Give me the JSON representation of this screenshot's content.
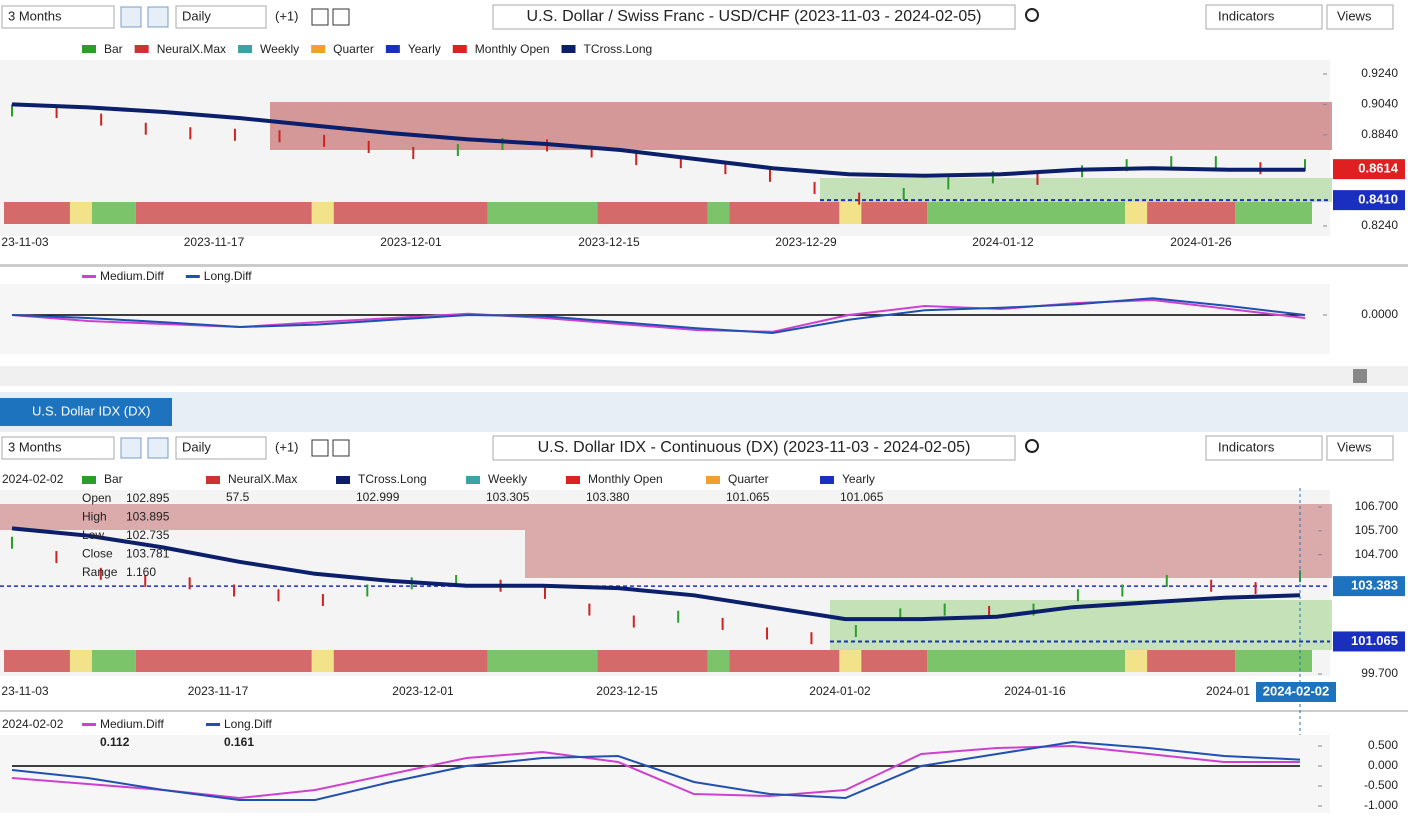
{
  "toolbar1": {
    "range": "3 Months",
    "interval": "Daily",
    "offset": "(+1)",
    "title": "U.S. Dollar / Swiss Franc - USD/CHF (2023-11-03 - 2024-02-05)",
    "indicators": "Indicators",
    "views": "Views"
  },
  "chart1": {
    "legend": [
      "Bar",
      "NeuralX.Max",
      "Weekly",
      "Quarter",
      "Yearly",
      "Monthly Open",
      "TCross.Long"
    ],
    "ylim": [
      0.8174,
      0.9319
    ],
    "yticks": [
      {
        "value": 0.924,
        "label": "0.9240"
      },
      {
        "value": 0.904,
        "label": "0.9040"
      },
      {
        "value": 0.884,
        "label": "0.8840"
      },
      {
        "value": 0.824,
        "label": "0.8240"
      }
    ],
    "price": 0.8614,
    "support": {
      "value": 0.841,
      "label": "0.8410"
    },
    "xticks": [
      "23-11-03",
      "2023-11-17",
      "2023-12-01",
      "2023-12-15",
      "2023-12-29",
      "2024-01-12",
      "2024-01-26"
    ],
    "tcross": [
      0.904,
      0.902,
      0.899,
      0.895,
      0.89,
      0.885,
      0.881,
      0.878,
      0.874,
      0.868,
      0.862,
      0.858,
      0.857,
      0.858,
      0.861,
      0.862,
      0.861,
      0.861
    ],
    "closes": [
      0.9,
      0.899,
      0.894,
      0.888,
      0.885,
      0.884,
      0.883,
      0.88,
      0.876,
      0.872,
      0.874,
      0.878,
      0.877,
      0.873,
      0.868,
      0.866,
      0.862,
      0.857,
      0.849,
      0.842,
      0.845,
      0.852,
      0.856,
      0.855,
      0.86,
      0.864,
      0.866,
      0.866,
      0.862,
      0.864
    ]
  },
  "diff1": {
    "legend": [
      "Medium.Diff",
      "Long.Diff"
    ],
    "ylim": [
      -0.45,
      0.45
    ],
    "yticks": [
      {
        "value": 0,
        "label": "0.0000"
      }
    ],
    "medium": [
      0.0,
      -0.1,
      -0.15,
      -0.2,
      -0.12,
      -0.05,
      0.02,
      -0.05,
      -0.15,
      -0.25,
      -0.28,
      0.0,
      0.15,
      0.1,
      0.2,
      0.25,
      0.1,
      -0.05
    ],
    "long": [
      0.0,
      -0.05,
      -0.12,
      -0.2,
      -0.16,
      -0.08,
      0.0,
      -0.02,
      -0.12,
      -0.22,
      -0.3,
      -0.08,
      0.08,
      0.12,
      0.18,
      0.28,
      0.15,
      0.0
    ]
  },
  "tab": "U.S. Dollar IDX (DX)",
  "toolbar2": {
    "range": "3 Months",
    "interval": "Daily",
    "offset": "(+1)",
    "title": "U.S. Dollar IDX - Continuous (DX) (2023-11-03 - 2024-02-05)",
    "indicators": "Indicators",
    "views": "Views"
  },
  "chart2": {
    "date": "2024-02-02",
    "legend": [
      {
        "name": "Bar"
      },
      {
        "name": "NeuralX.Max",
        "value": "57.5"
      },
      {
        "name": "TCross.Long",
        "value": "102.999"
      },
      {
        "name": "Weekly",
        "value": "103.305"
      },
      {
        "name": "Monthly Open",
        "value": "103.380"
      },
      {
        "name": "Quarter",
        "value": "101.065"
      },
      {
        "name": "Yearly",
        "value": "101.065"
      }
    ],
    "ohlc": [
      {
        "name": "Open",
        "value": "102.895"
      },
      {
        "name": "High",
        "value": "103.895"
      },
      {
        "name": "Low",
        "value": "102.735"
      },
      {
        "name": "Close",
        "value": "103.781"
      },
      {
        "name": "Range",
        "value": "1.160"
      }
    ],
    "ylim": [
      99.45,
      107.41
    ],
    "yticks": [
      {
        "value": 106.7,
        "label": "106.700"
      },
      {
        "value": 105.7,
        "label": "105.700"
      },
      {
        "value": 104.7,
        "label": "104.700"
      },
      {
        "value": 99.7,
        "label": "99.700"
      }
    ],
    "price": 103.383,
    "support": 101.065,
    "xticks": [
      "23-11-03",
      "2023-11-17",
      "2023-12-01",
      "2023-12-15",
      "2024-01-02",
      "2024-01-16",
      "2024-01"
    ],
    "cursor_date": "2024-02-02",
    "tcross": [
      105.8,
      105.5,
      105.0,
      104.4,
      103.9,
      103.6,
      103.4,
      103.4,
      103.3,
      103.0,
      102.5,
      102.0,
      102.0,
      102.1,
      102.5,
      102.7,
      102.9,
      103.0
    ],
    "closes": [
      105.2,
      104.6,
      103.9,
      103.6,
      103.5,
      103.2,
      103.0,
      102.8,
      103.2,
      103.5,
      103.6,
      103.4,
      103.1,
      102.4,
      101.9,
      102.1,
      101.8,
      101.4,
      101.2,
      101.5,
      102.2,
      102.4,
      102.3,
      102.4,
      103.0,
      103.2,
      103.6,
      103.4,
      103.3,
      103.8
    ]
  },
  "diff2": {
    "date": "2024-02-02",
    "legend": [
      {
        "name": "Medium.Diff",
        "value": "0.112"
      },
      {
        "name": "Long.Diff",
        "value": "0.161"
      }
    ],
    "ylim": [
      -1.1,
      0.775
    ],
    "yticks": [
      {
        "value": 0.5,
        "label": "0.500"
      },
      {
        "value": 0,
        "label": "0.000"
      },
      {
        "value": -0.5,
        "label": "-0.500"
      },
      {
        "value": -1,
        "label": "-1.000"
      }
    ],
    "medium": [
      -0.3,
      -0.45,
      -0.6,
      -0.8,
      -0.6,
      -0.2,
      0.2,
      0.35,
      0.1,
      -0.7,
      -0.75,
      -0.6,
      0.3,
      0.45,
      0.5,
      0.3,
      0.1,
      0.1
    ],
    "long": [
      -0.1,
      -0.3,
      -0.6,
      -0.85,
      -0.85,
      -0.4,
      0.0,
      0.2,
      0.25,
      -0.4,
      -0.7,
      -0.8,
      0.0,
      0.3,
      0.6,
      0.45,
      0.25,
      0.16
    ]
  }
}
